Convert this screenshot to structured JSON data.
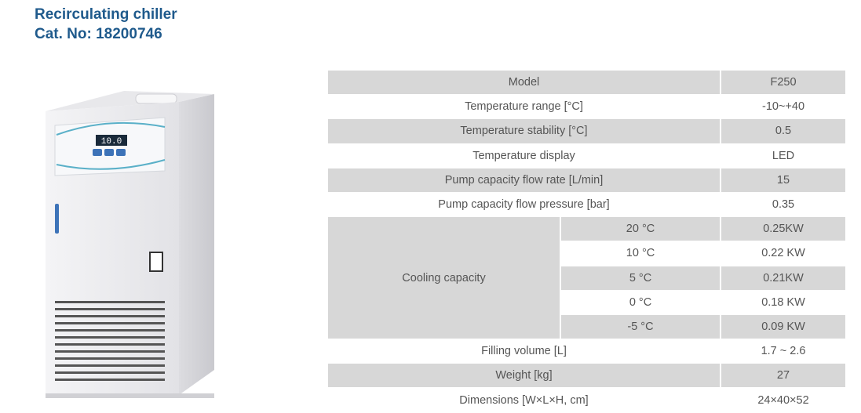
{
  "header": {
    "title": "Recirculating chiller",
    "cat_no": "Cat. No: 18200746"
  },
  "product": {
    "icon": "chiller-unit-illustration",
    "display_reading": "10.0",
    "body_color": "#ececef",
    "accent_color": "#5ab0c8"
  },
  "table": {
    "rows": [
      {
        "label": "Model",
        "value": "F250"
      },
      {
        "label": "Temperature range [°C]",
        "value": "-10~+40"
      },
      {
        "label": "Temperature stability [°C]",
        "value": "0.5"
      },
      {
        "label": "Temperature display",
        "value": "LED"
      },
      {
        "label": "Pump capacity flow rate [L/min]",
        "value": "15"
      },
      {
        "label": "Pump capacity flow pressure [bar]",
        "value": "0.35"
      }
    ],
    "cooling": {
      "label": "Cooling capacity",
      "items": [
        {
          "temp": "20 °C",
          "value": "0.25KW"
        },
        {
          "temp": "10 °C",
          "value": "0.22 KW"
        },
        {
          "temp": "5 °C",
          "value": "0.21KW"
        },
        {
          "temp": "0 °C",
          "value": "0.18 KW"
        },
        {
          "temp": "-5 °C",
          "value": "0.09 KW"
        }
      ]
    },
    "tail_rows": [
      {
        "label": "Filling volume [L]",
        "value": "1.7 ~ 2.6"
      },
      {
        "label": "Weight [kg]",
        "value": "27"
      },
      {
        "label": "Dimensions [W×L×H, cm]",
        "value": "24×40×52"
      }
    ]
  }
}
